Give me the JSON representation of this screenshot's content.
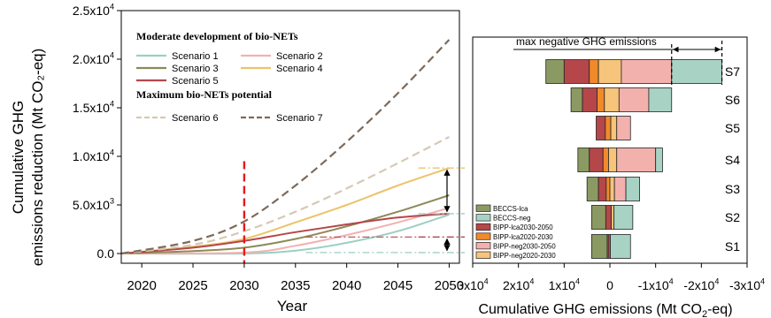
{
  "chart_data": [
    {
      "type": "line",
      "xlabel": "Year",
      "ylabel_lines": [
        "Cumulative GHG",
        "emissions reduction (Mt CO₂-eq)"
      ],
      "xlim": [
        2018,
        2051
      ],
      "ylim": [
        -1000,
        25000
      ],
      "x_ticks": [
        2020,
        2025,
        2030,
        2035,
        2040,
        2045,
        2050
      ],
      "x_tick_labels": [
        "2020",
        "2025",
        "2030",
        "2035",
        "2040",
        "2045",
        "2050"
      ],
      "y_ticks": [
        0,
        5000,
        10000,
        15000,
        20000,
        25000
      ],
      "y_tick_labels": [
        {
          "mant": "0.0",
          "exp": ""
        },
        {
          "mant": "5.0x10",
          "exp": "3"
        },
        {
          "mant": "1.0x10",
          "exp": "4"
        },
        {
          "mant": "1.5x10",
          "exp": "4"
        },
        {
          "mant": "2.0x10",
          "exp": "4"
        },
        {
          "mant": "2.5x10",
          "exp": "4"
        }
      ],
      "legend": {
        "group1_title": "Moderate development of bio-NETs",
        "group2_title": "Maximum bio-NETs potential"
      },
      "series": [
        {
          "name": "Scenario 1",
          "color": "#9ccfc2",
          "dash": "solid",
          "x": [
            2018,
            2030,
            2035,
            2040,
            2045,
            2050
          ],
          "y": [
            0,
            0,
            300,
            1100,
            2300,
            4000
          ]
        },
        {
          "name": "Scenario 2",
          "color": "#f2b1b1",
          "dash": "solid",
          "x": [
            2018,
            2030,
            2035,
            2040,
            2045,
            2050
          ],
          "y": [
            0,
            100,
            800,
            1900,
            3200,
            4700
          ]
        },
        {
          "name": "Scenario 3",
          "color": "#8b8a57",
          "dash": "solid",
          "x": [
            2018,
            2025,
            2030,
            2035,
            2040,
            2045,
            2050
          ],
          "y": [
            0,
            250,
            600,
            1500,
            2800,
            4300,
            6000
          ]
        },
        {
          "name": "Scenario 4",
          "color": "#ecc36b",
          "dash": "solid",
          "x": [
            2018,
            2025,
            2030,
            2035,
            2040,
            2045,
            2050
          ],
          "y": [
            0,
            700,
            1500,
            3200,
            5000,
            7000,
            8800
          ]
        },
        {
          "name": "Scenario 5",
          "color": "#b5474a",
          "dash": "solid",
          "x": [
            2018,
            2025,
            2030,
            2035,
            2040,
            2045,
            2050
          ],
          "y": [
            0,
            600,
            1300,
            2200,
            3000,
            3700,
            4100
          ]
        },
        {
          "name": "Scenario 6",
          "color": "#d6c9b4",
          "dash": "dash",
          "x": [
            2018,
            2025,
            2030,
            2035,
            2040,
            2045,
            2050
          ],
          "y": [
            0,
            900,
            2300,
            4300,
            6700,
            9300,
            12000
          ]
        },
        {
          "name": "Scenario 7",
          "color": "#7d6a5a",
          "dash": "dash",
          "x": [
            2018,
            2025,
            2030,
            2035,
            2040,
            2045,
            2050
          ],
          "y": [
            0,
            1300,
            3300,
            7000,
            11500,
            16500,
            22000
          ]
        }
      ],
      "reference_lines": [
        {
          "y": 8800,
          "color": "#ecc36b"
        },
        {
          "y": 4100,
          "color": "#9ccfc2"
        },
        {
          "y": 1700,
          "color": "#b5474a"
        },
        {
          "y": 100,
          "color": "#9ccfc2"
        }
      ],
      "marker_line_x": 2030,
      "marker_line_color": "#e41a1c"
    },
    {
      "type": "bar",
      "orientation": "horizontal-stacked",
      "xlabel_main": "Cumulative GHG emissions (Mt CO",
      "xlabel_sub": "2",
      "xlabel_tail": "-eq)",
      "xlim": [
        30000,
        -30000
      ],
      "x_ticks": [
        30000,
        20000,
        10000,
        0,
        -10000,
        -20000,
        -30000
      ],
      "x_tick_labels": [
        {
          "mant": "3x10",
          "exp": "4"
        },
        {
          "mant": "2x10",
          "exp": "4"
        },
        {
          "mant": "1x10",
          "exp": "4"
        },
        {
          "mant": "0",
          "exp": ""
        },
        {
          "mant": "-1x10",
          "exp": "4"
        },
        {
          "mant": "-2x10",
          "exp": "4"
        },
        {
          "mant": "-3x10",
          "exp": "4"
        }
      ],
      "annotation": "max negative GHG emissions",
      "annotation_range": [
        -13500,
        -24500
      ],
      "categories": [
        "S7",
        "S6",
        "S5",
        "S4",
        "S3",
        "S2",
        "S1"
      ],
      "components": [
        {
          "name": "BECCS-lca",
          "color": "#8b9a62"
        },
        {
          "name": "BECCS-neg",
          "color": "#a8d3c4"
        },
        {
          "name": "BIPP-lca2030-2050",
          "color": "#b5474a"
        },
        {
          "name": "BIPP-lca2020-2030",
          "color": "#f08a2b"
        },
        {
          "name": "BIPP-neg2030-2050",
          "color": "#f3b1ae"
        },
        {
          "name": "BIPP-neg2020-2030",
          "color": "#f6c47a"
        }
      ],
      "segments": {
        "S7": [
          [
            "BECCS-lca",
            14000,
            10000
          ],
          [
            "BIPP-lca2030-2050",
            10000,
            4500
          ],
          [
            "BIPP-lca2020-2030",
            4500,
            2500
          ],
          [
            "BIPP-neg2020-2030",
            2500,
            -2500
          ],
          [
            "BIPP-neg2030-2050",
            -2500,
            -13500
          ],
          [
            "BECCS-neg",
            -13500,
            -24500
          ]
        ],
        "S6": [
          [
            "BECCS-lca",
            8500,
            6000
          ],
          [
            "BIPP-lca2030-2050",
            6000,
            2800
          ],
          [
            "BIPP-lca2020-2030",
            2800,
            1200
          ],
          [
            "BIPP-neg2020-2030",
            1200,
            -2000
          ],
          [
            "BIPP-neg2030-2050",
            -2000,
            -8500
          ],
          [
            "BECCS-neg",
            -8500,
            -13500
          ]
        ],
        "S5": [
          [
            "BIPP-lca2030-2050",
            3000,
            1000
          ],
          [
            "BIPP-lca2020-2030",
            1000,
            -200
          ],
          [
            "BIPP-neg2020-2030",
            -200,
            -1500
          ],
          [
            "BIPP-neg2030-2050",
            -1500,
            -4500
          ]
        ],
        "S4": [
          [
            "BECCS-lca",
            7000,
            4500
          ],
          [
            "BIPP-lca2030-2050",
            4500,
            1500
          ],
          [
            "BIPP-lca2020-2030",
            1500,
            300
          ],
          [
            "BIPP-neg2020-2030",
            300,
            -1500
          ],
          [
            "BIPP-neg2030-2050",
            -1500,
            -10000
          ],
          [
            "BECCS-neg",
            -10000,
            -11500
          ]
        ],
        "S3": [
          [
            "BECCS-lca",
            5000,
            2500
          ],
          [
            "BIPP-lca2030-2050",
            2500,
            800
          ],
          [
            "BIPP-lca2020-2030",
            800,
            0
          ],
          [
            "BIPP-neg2020-2030",
            0,
            -1000
          ],
          [
            "BIPP-neg2030-2050",
            -1000,
            -3500
          ],
          [
            "BECCS-neg",
            -3500,
            -6500
          ]
        ],
        "S2": [
          [
            "BECCS-lca",
            4000,
            900
          ],
          [
            "BIPP-lca2030-2050",
            900,
            -300
          ],
          [
            "BIPP-neg2020-2030",
            -300,
            -900
          ],
          [
            "BECCS-neg",
            -900,
            -5000
          ]
        ],
        "S1": [
          [
            "BECCS-lca",
            4000,
            600
          ],
          [
            "BIPP-lca2030-2050",
            600,
            200
          ],
          [
            "BIPP-lca2020-2030",
            200,
            -100
          ],
          [
            "BECCS-neg",
            -100,
            -4500
          ]
        ]
      }
    }
  ]
}
